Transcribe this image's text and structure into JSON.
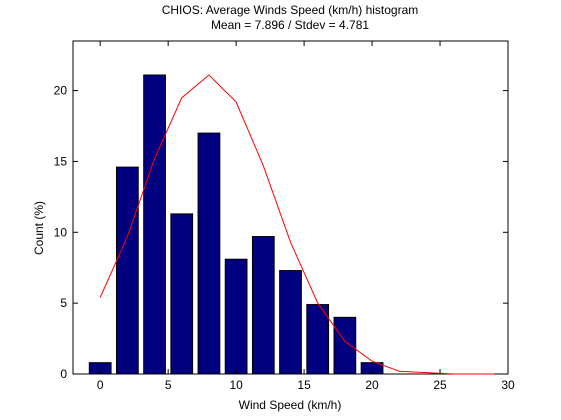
{
  "chart_data": {
    "type": "bar",
    "title": "CHIOS: Average Winds Speed (km/h) histogram",
    "subtitle": "Mean = 7.896 / Stdev = 4.781",
    "xlabel": "Wind Speed (km/h)",
    "ylabel": "Count (%)",
    "xlim": [
      -2,
      30
    ],
    "ylim": [
      0,
      23.5
    ],
    "xticks": [
      0,
      5,
      10,
      15,
      20,
      25,
      30
    ],
    "yticks": [
      0,
      5,
      10,
      15,
      20
    ],
    "grid": false,
    "bar_width": 1.6,
    "colors": {
      "bars": "#000080",
      "bar_edge": "#000000",
      "curve": "#ff0000",
      "axes": "#000000"
    },
    "series": [
      {
        "type": "bar",
        "x": [
          0,
          2,
          4,
          6,
          8,
          10,
          12,
          14,
          16,
          18,
          20
        ],
        "values": [
          0.8,
          14.6,
          21.1,
          11.3,
          17.0,
          8.1,
          9.7,
          7.3,
          4.9,
          4.0,
          0.8
        ]
      },
      {
        "type": "line",
        "x": [
          0,
          2,
          4,
          6,
          8,
          10,
          12,
          14,
          16,
          18,
          20,
          22,
          24,
          26,
          28,
          29
        ],
        "values": [
          5.4,
          9.7,
          15.2,
          19.5,
          21.1,
          19.2,
          14.7,
          9.3,
          5.0,
          2.3,
          0.9,
          0.2,
          0.1,
          0.0,
          0.0,
          0.0
        ]
      }
    ]
  }
}
